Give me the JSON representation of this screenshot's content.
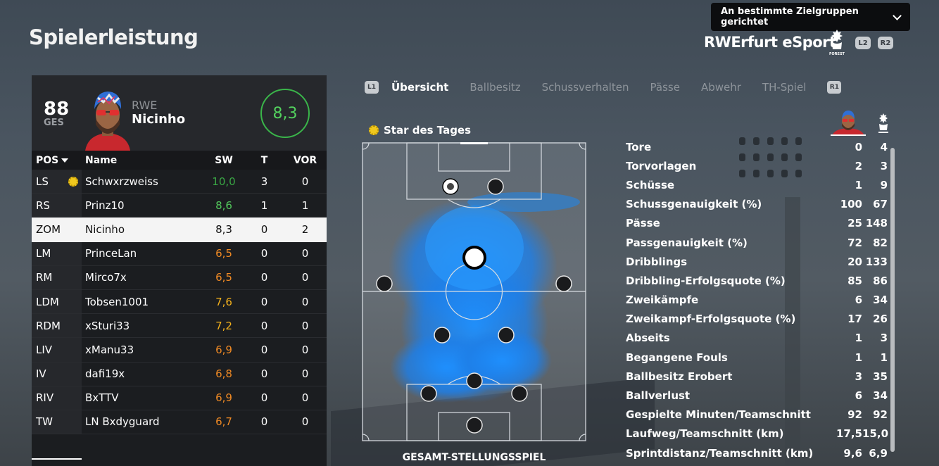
{
  "page_title": "Spielerleistung",
  "audience_dropdown": {
    "label": "An bestimmte Zielgruppen gerichtet"
  },
  "team_header": {
    "name": "RWErfurt eSport",
    "crest_text": "FOREST",
    "buttons": [
      "L2",
      "R2"
    ]
  },
  "player": {
    "overall": "88",
    "overall_label": "GES",
    "team_abbr": "RWE",
    "name": "Nicinho",
    "match_rating": "8,3"
  },
  "table": {
    "headers": {
      "pos": "POS",
      "name": "Name",
      "sw": "SW",
      "t": "T",
      "vor": "VOR"
    },
    "rows": [
      {
        "pos": "LS",
        "name": "Schwxrzweiss",
        "sw": "10,0",
        "t": "3",
        "vor": "0",
        "sw_color": "#3aa845",
        "star": true
      },
      {
        "pos": "RS",
        "name": "Prinz10",
        "sw": "8,6",
        "t": "1",
        "vor": "1",
        "sw_color": "#53c85c"
      },
      {
        "pos": "ZOM",
        "name": "Nicinho",
        "sw": "8,3",
        "t": "0",
        "vor": "2",
        "sw_color": "#111111",
        "selected": true
      },
      {
        "pos": "LM",
        "name": "PrinceLan",
        "sw": "6,5",
        "t": "0",
        "vor": "0",
        "sw_color": "#f08a24"
      },
      {
        "pos": "RM",
        "name": "Mirco7x",
        "sw": "6,5",
        "t": "0",
        "vor": "0",
        "sw_color": "#f08a24"
      },
      {
        "pos": "LDM",
        "name": "Tobsen1001",
        "sw": "7,6",
        "t": "0",
        "vor": "0",
        "sw_color": "#f5b21c"
      },
      {
        "pos": "RDM",
        "name": "xSturi33",
        "sw": "7,2",
        "t": "0",
        "vor": "0",
        "sw_color": "#f5b21c"
      },
      {
        "pos": "LIV",
        "name": "xManu33",
        "sw": "6,9",
        "t": "0",
        "vor": "0",
        "sw_color": "#f08a24"
      },
      {
        "pos": "IV",
        "name": "dafi19x",
        "sw": "6,8",
        "t": "0",
        "vor": "0",
        "sw_color": "#f08a24"
      },
      {
        "pos": "RIV",
        "name": "BxTTV",
        "sw": "6,9",
        "t": "0",
        "vor": "0",
        "sw_color": "#f08a24"
      },
      {
        "pos": "TW",
        "name": "LN Bxdyguard",
        "sw": "6,7",
        "t": "0",
        "vor": "0",
        "sw_color": "#f08a24"
      }
    ]
  },
  "tabs": {
    "left_button": "L1",
    "right_button": "R1",
    "items": [
      "Übersicht",
      "Ballbesitz",
      "Schussverhalten",
      "Pässe",
      "Abwehr",
      "TH-Spiel"
    ],
    "active": "Übersicht"
  },
  "star_of_day": "Star des Tages",
  "pitch_caption": "GESAMT-STELLUNGSSPIEL",
  "stats": [
    {
      "label": "Tore",
      "player": "0",
      "team": "4"
    },
    {
      "label": "Torvorlagen",
      "player": "2",
      "team": "3"
    },
    {
      "label": "Schüsse",
      "player": "1",
      "team": "9"
    },
    {
      "label": "Schussgenauigkeit (%)",
      "player": "100",
      "team": "67"
    },
    {
      "label": "Pässe",
      "player": "25",
      "team": "148"
    },
    {
      "label": "Passgenauigkeit (%)",
      "player": "72",
      "team": "82"
    },
    {
      "label": "Dribblings",
      "player": "20",
      "team": "133"
    },
    {
      "label": "Dribbling-Erfolgsquote (%)",
      "player": "85",
      "team": "86"
    },
    {
      "label": "Zweikämpfe",
      "player": "6",
      "team": "34"
    },
    {
      "label": "Zweikampf-Erfolgsquote (%)",
      "player": "17",
      "team": "26"
    },
    {
      "label": "Abseits",
      "player": "1",
      "team": "3"
    },
    {
      "label": "Begangene Fouls",
      "player": "1",
      "team": "1"
    },
    {
      "label": "Ballbesitz Erobert",
      "player": "3",
      "team": "35"
    },
    {
      "label": "Ballverlust",
      "player": "6",
      "team": "34"
    },
    {
      "label": "Gespielte Minuten/Teamschnitt",
      "player": "92",
      "team": "92"
    },
    {
      "label": "Laufweg/Teamschnitt (km)",
      "player": "17,5",
      "team": "15,0"
    },
    {
      "label": "Sprintdistanz/Teamschnitt (km)",
      "player": "9,6",
      "team": "6,9"
    }
  ],
  "colors": {
    "accent_green": "#3ab54a",
    "heatmap_blue": "#1e90ff"
  }
}
